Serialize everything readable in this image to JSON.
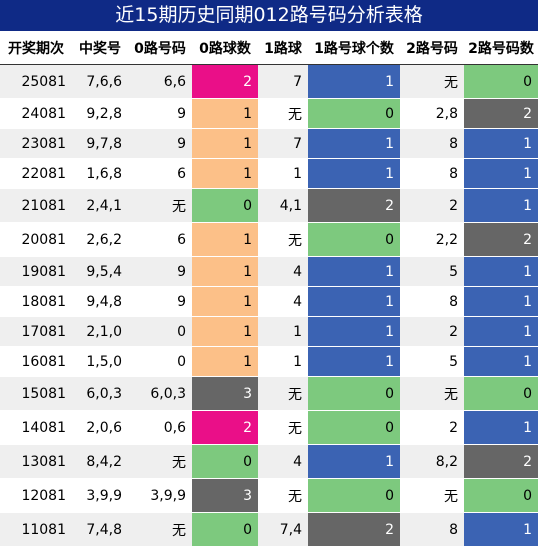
{
  "title": "近15期历史同期012路号码分析表格",
  "headers": [
    "开奖期次",
    "中奖号",
    "0路号码",
    "0路球数",
    "1路球",
    "1路号球个数",
    "2路号码",
    "2路号码数"
  ],
  "colors": {
    "pink": "#ea0f88",
    "peach": "#fcc088",
    "green": "#7dc97e",
    "gray": "#666666",
    "blue": "#3b63b3"
  },
  "rows": [
    {
      "cells": [
        "25081",
        "7,6,6",
        "6,6",
        "2",
        "7",
        "1",
        "无",
        "0"
      ],
      "c0": "pink",
      "c1": "blue",
      "c2": "green"
    },
    {
      "cells": [
        "24081",
        "9,2,8",
        "9",
        "1",
        "无",
        "0",
        "2,8",
        "2"
      ],
      "c0": "peach",
      "c1": "green",
      "c2": "gray"
    },
    {
      "cells": [
        "23081",
        "9,7,8",
        "9",
        "1",
        "7",
        "1",
        "8",
        "1"
      ],
      "c0": "peach",
      "c1": "blue",
      "c2": "blue"
    },
    {
      "cells": [
        "22081",
        "1,6,8",
        "6",
        "1",
        "1",
        "1",
        "8",
        "1"
      ],
      "c0": "peach",
      "c1": "blue",
      "c2": "blue"
    },
    {
      "cells": [
        "21081",
        "2,4,1",
        "无",
        "0",
        "4,1",
        "2",
        "2",
        "1"
      ],
      "c0": "green",
      "c1": "gray",
      "c2": "blue"
    },
    {
      "cells": [
        "20081",
        "2,6,2",
        "6",
        "1",
        "无",
        "0",
        "2,2",
        "2"
      ],
      "c0": "peach",
      "c1": "green",
      "c2": "gray"
    },
    {
      "cells": [
        "19081",
        "9,5,4",
        "9",
        "1",
        "4",
        "1",
        "5",
        "1"
      ],
      "c0": "peach",
      "c1": "blue",
      "c2": "blue"
    },
    {
      "cells": [
        "18081",
        "9,4,8",
        "9",
        "1",
        "4",
        "1",
        "8",
        "1"
      ],
      "c0": "peach",
      "c1": "blue",
      "c2": "blue"
    },
    {
      "cells": [
        "17081",
        "2,1,0",
        "0",
        "1",
        "1",
        "1",
        "2",
        "1"
      ],
      "c0": "peach",
      "c1": "blue",
      "c2": "blue"
    },
    {
      "cells": [
        "16081",
        "1,5,0",
        "0",
        "1",
        "1",
        "1",
        "5",
        "1"
      ],
      "c0": "peach",
      "c1": "blue",
      "c2": "blue"
    },
    {
      "cells": [
        "15081",
        "6,0,3",
        "6,0,3",
        "3",
        "无",
        "0",
        "无",
        "0"
      ],
      "c0": "gray",
      "c1": "green",
      "c2": "green"
    },
    {
      "cells": [
        "14081",
        "2,0,6",
        "0,6",
        "2",
        "无",
        "0",
        "2",
        "1"
      ],
      "c0": "pink",
      "c1": "green",
      "c2": "blue"
    },
    {
      "cells": [
        "13081",
        "8,4,2",
        "无",
        "0",
        "4",
        "1",
        "8,2",
        "2"
      ],
      "c0": "green",
      "c1": "blue",
      "c2": "gray"
    },
    {
      "cells": [
        "12081",
        "3,9,9",
        "3,9,9",
        "3",
        "无",
        "0",
        "无",
        "0"
      ],
      "c0": "gray",
      "c1": "green",
      "c2": "green"
    },
    {
      "cells": [
        "11081",
        "7,4,8",
        "无",
        "0",
        "7,4",
        "2",
        "8",
        "1"
      ],
      "c0": "green",
      "c1": "gray",
      "c2": "blue"
    }
  ]
}
